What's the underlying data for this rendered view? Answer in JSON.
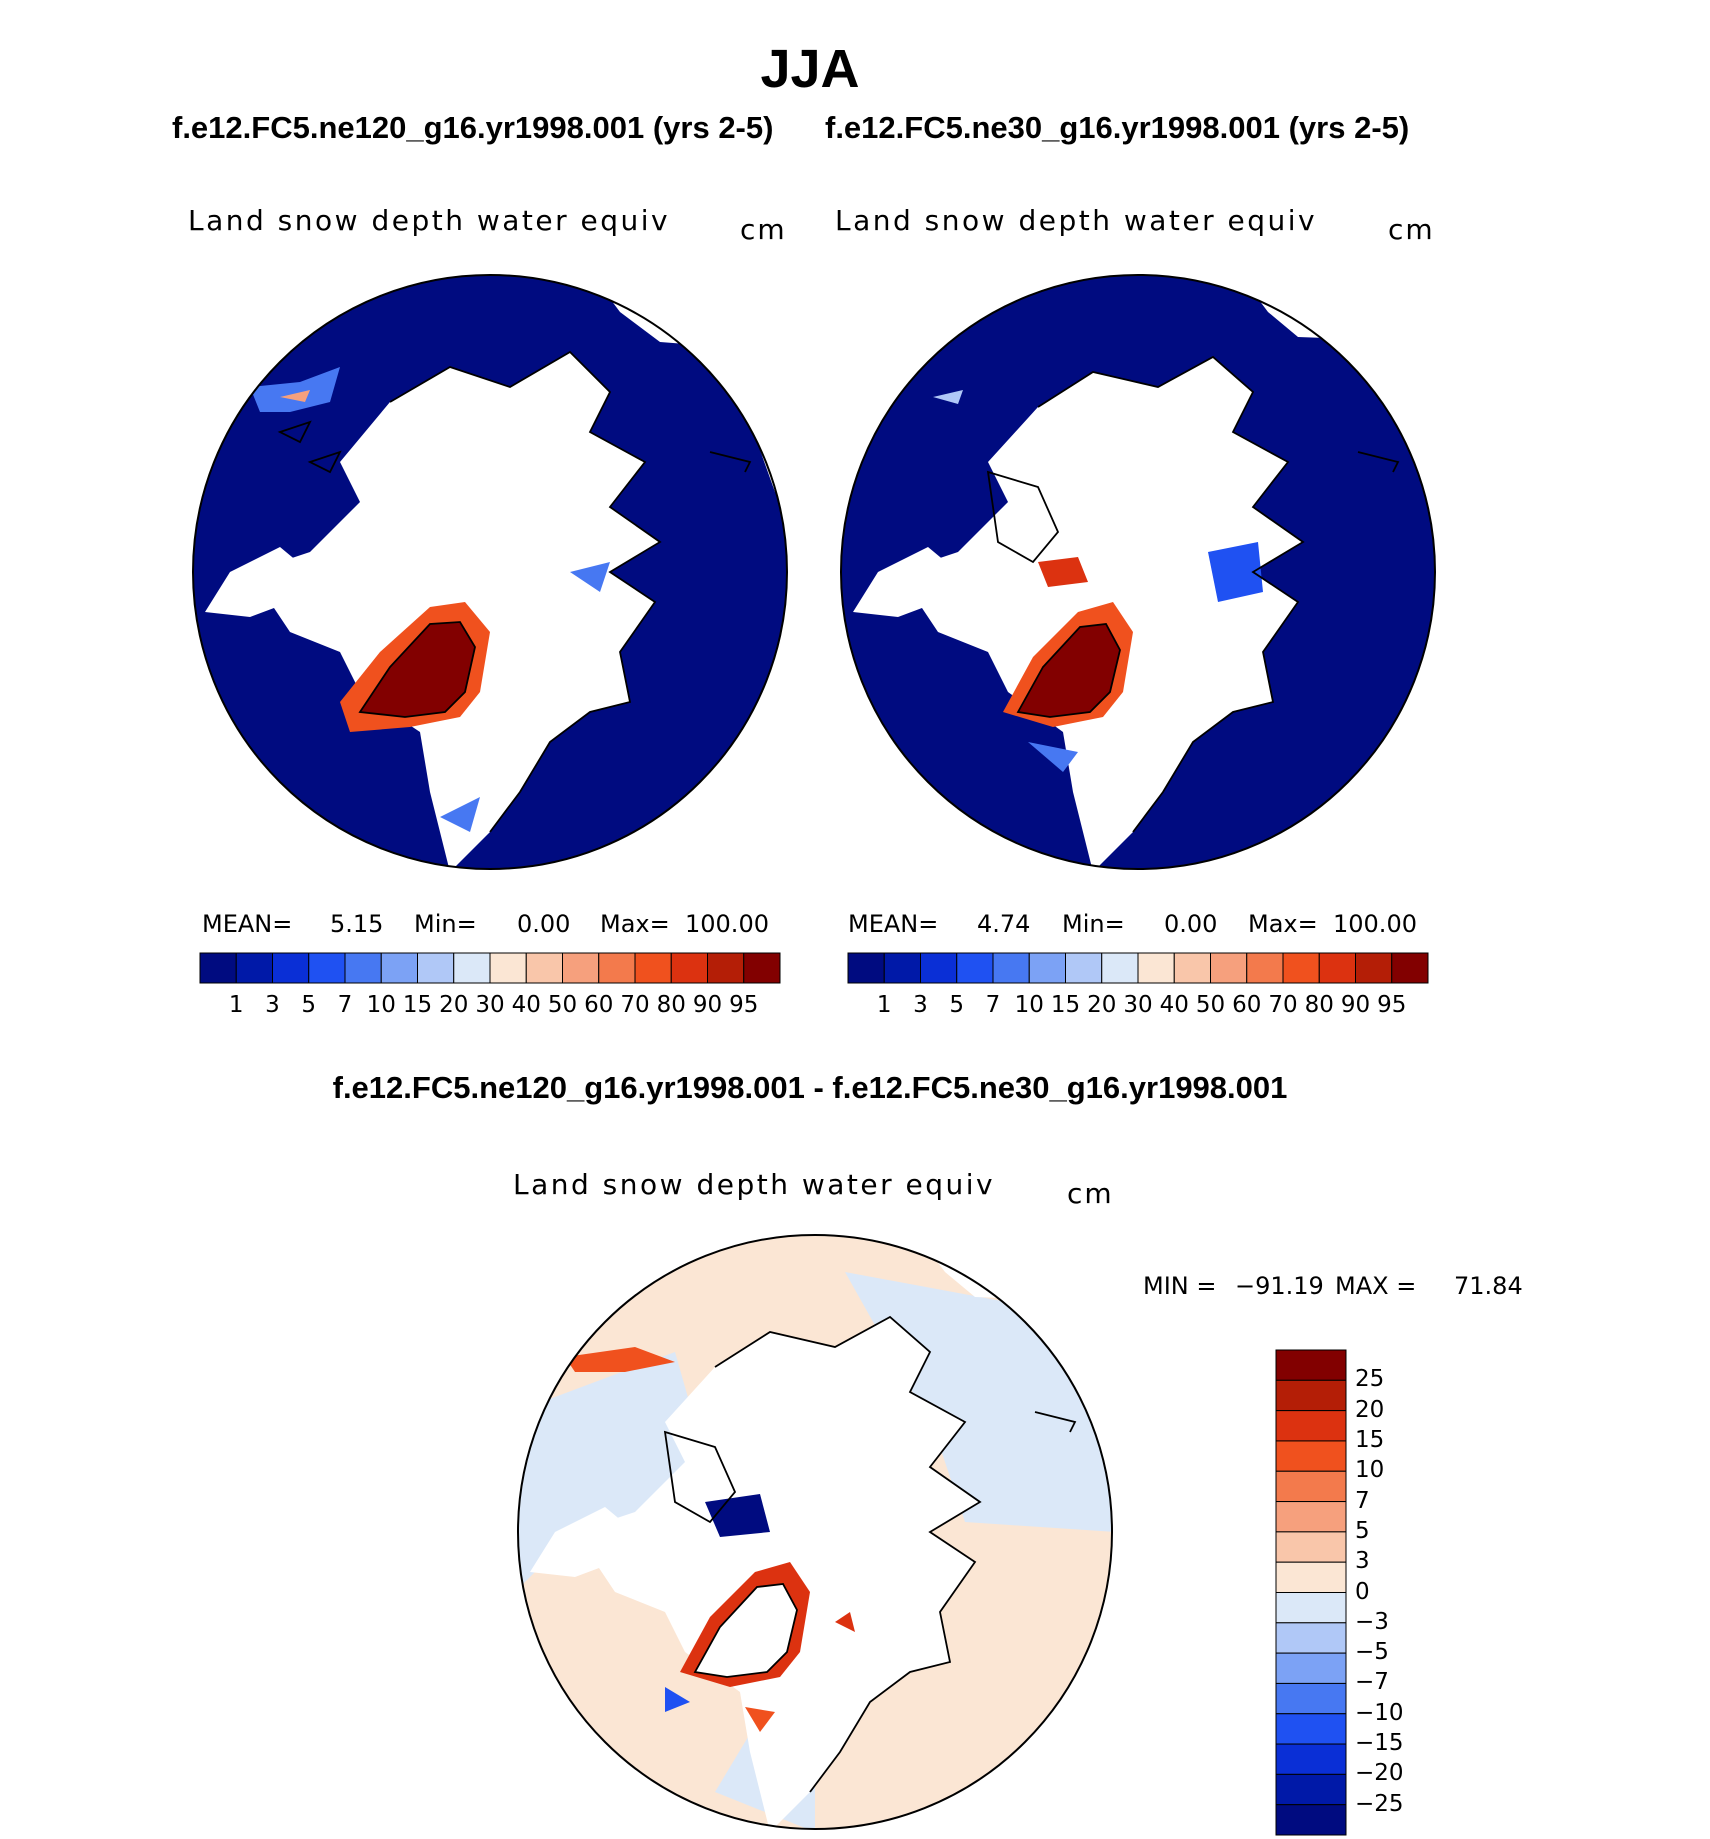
{
  "title": "JJA",
  "panels": [
    {
      "case": "f.e12.FC5.ne120_g16.yr1998.001 (yrs 2-5)",
      "variable": "Land snow depth water equiv",
      "units": "cm",
      "stats": {
        "mean_label": "MEAN=",
        "mean": "5.15",
        "min_label": "Min=",
        "min": "0.00",
        "max_label": "Max=",
        "max": "100.00"
      }
    },
    {
      "case": "f.e12.FC5.ne30_g16.yr1998.001 (yrs 2-5)",
      "variable": "Land snow depth water equiv",
      "units": "cm",
      "stats": {
        "mean_label": "MEAN=",
        "mean": "4.74",
        "min_label": "Min=",
        "min": "0.00",
        "max_label": "Max=",
        "max": "100.00"
      }
    }
  ],
  "colorbar": {
    "labels": [
      "1",
      "3",
      "5",
      "7",
      "10",
      "15",
      "20",
      "30",
      "40",
      "50",
      "60",
      "70",
      "80",
      "90",
      "95"
    ],
    "colors": [
      "#000b80",
      "#0019a8",
      "#0a2fd6",
      "#1f51f2",
      "#4778f2",
      "#7ca2f5",
      "#b0c8f7",
      "#dbe8f8",
      "#fbe6d4",
      "#f9c6aa",
      "#f6a07d",
      "#f37a4c",
      "#f0511e",
      "#dc3210",
      "#b41e06",
      "#820000"
    ]
  },
  "difference": {
    "title": "f.e12.FC5.ne120_g16.yr1998.001 - f.e12.FC5.ne30_g16.yr1998.001",
    "variable": "Land snow depth water equiv",
    "units": "cm",
    "stats": {
      "min_label": "MIN =",
      "min": "−91.19",
      "max_label": "MAX =",
      "max": "71.84"
    },
    "colorbar": {
      "labels": [
        "25",
        "20",
        "15",
        "10",
        "7",
        "5",
        "3",
        "0",
        "−3",
        "−5",
        "−7",
        "−10",
        "−15",
        "−20",
        "−25"
      ],
      "colors": [
        "#820000",
        "#b41e06",
        "#dc3210",
        "#f0511e",
        "#f37a4c",
        "#f6a07d",
        "#f9c6aa",
        "#fbe6d4",
        "#dbe8f8",
        "#b0c8f7",
        "#7ca2f5",
        "#4778f2",
        "#1f51f2",
        "#0a2fd6",
        "#0019a8",
        "#000b80"
      ]
    }
  }
}
